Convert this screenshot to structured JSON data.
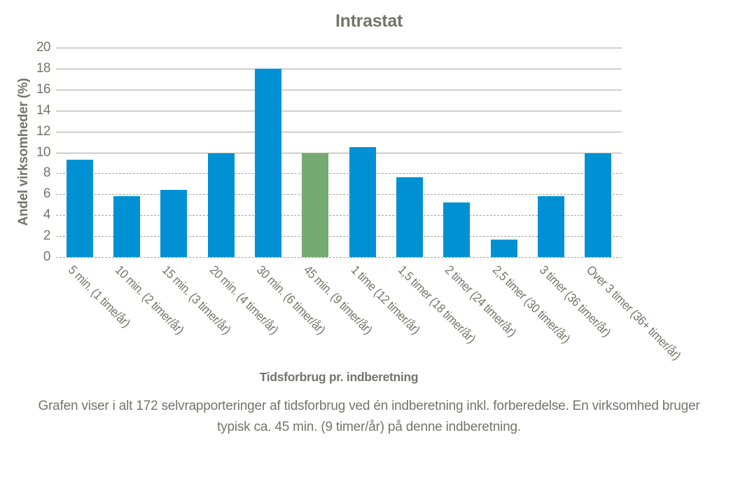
{
  "chart_data": {
    "type": "bar",
    "title": "Intrastat",
    "ylabel": "Andel virksomheder (%)",
    "xlabel": "Tidsforbrug pr. indberetning",
    "categories": [
      "5 min. (1 time/år)",
      "10 min. (2 timer/år)",
      "15 min. (3 timer/år)",
      "20 min. (4 timer/år)",
      "30 min. (6 timer/år)",
      "45 min. (9 timer/år)",
      "1 time (12 timer/år)",
      "1,5 timer (18 timer/år)",
      "2 timer (24 timer/år)",
      "2,5 timer (30 timer/år)",
      "3 timer (36 timer/år)",
      "Over 3 timer (36+ timer/år)"
    ],
    "values": [
      9.3,
      5.8,
      6.4,
      9.9,
      18,
      9.9,
      10.5,
      7.6,
      5.2,
      1.7,
      5.8,
      9.9
    ],
    "highlight_index": 5,
    "ylim": [
      0,
      20
    ],
    "ytick_step": 2,
    "grid": true,
    "legend": "none",
    "bar_color": "#0091D5",
    "highlight_color": "#75AB72",
    "text_color": "#75746A",
    "gridline_color": "#A6A49B",
    "caption": "Grafen viser i alt 172 selvrapporteringer af tidsforbrug ved én indberetning inkl. forberedelse. En virksomhed bruger typisk ca. 45 min. (9 timer/år) på denne indberetning."
  }
}
